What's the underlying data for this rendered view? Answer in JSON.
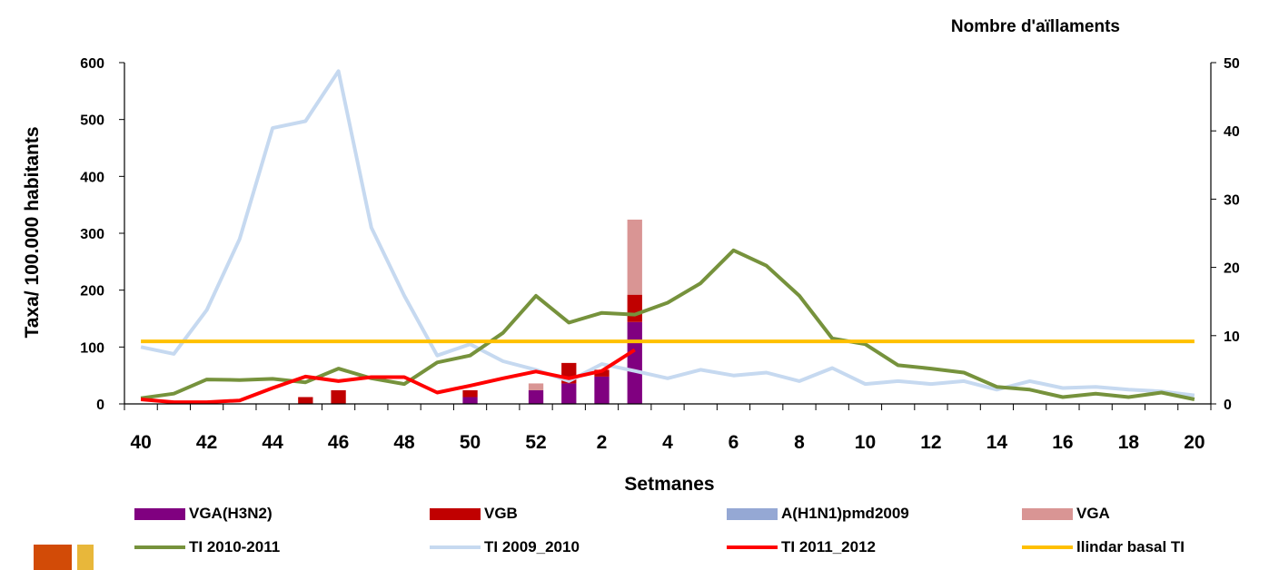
{
  "chart_data": {
    "type": "bar+line",
    "title": "",
    "xlabel": "Setmanes",
    "ylabel_left": "Taxa/ 100.000 habitants",
    "ylabel_right": "Nombre d'aïllaments",
    "ylim_left": [
      0,
      600
    ],
    "ylim_right": [
      0,
      50
    ],
    "y_ticks_left": [
      "0",
      "100",
      "200",
      "300",
      "400",
      "500",
      "600"
    ],
    "y_ticks_right": [
      "0",
      "10",
      "20",
      "30",
      "40",
      "50"
    ],
    "weeks": [
      40,
      41,
      42,
      43,
      44,
      45,
      46,
      47,
      48,
      49,
      50,
      51,
      52,
      1,
      2,
      3,
      4,
      5,
      6,
      7,
      8,
      9,
      10,
      11,
      12,
      13,
      14,
      15,
      16,
      17,
      18,
      19,
      20
    ],
    "x_tick_labels": [
      "40",
      "42",
      "44",
      "46",
      "48",
      "50",
      "52",
      "2",
      "4",
      "6",
      "8",
      "10",
      "12",
      "14",
      "16",
      "18",
      "20"
    ],
    "bar_series": [
      {
        "name": "VGA(H3N2)",
        "color": "#800080",
        "values": [
          0,
          0,
          0,
          0,
          0,
          0,
          0,
          0,
          0,
          0,
          1,
          0,
          2,
          3,
          4,
          12,
          0,
          0,
          0,
          0,
          0,
          0,
          0,
          0,
          0,
          0,
          0,
          0,
          0,
          0,
          0,
          0,
          0
        ]
      },
      {
        "name": "VGB",
        "color": "#c00000",
        "values": [
          0,
          0,
          0,
          0,
          0,
          1,
          2,
          0,
          0,
          0,
          1,
          0,
          0,
          3,
          1,
          4,
          0,
          0,
          0,
          0,
          0,
          0,
          0,
          0,
          0,
          0,
          0,
          0,
          0,
          0,
          0,
          0,
          0
        ]
      },
      {
        "name": "A(H1N1)pmd2009",
        "color": "#95a8d4",
        "values": [
          0,
          0,
          0,
          0,
          0,
          0,
          0,
          0,
          0,
          0,
          0,
          0,
          0,
          0,
          0,
          0,
          0,
          0,
          0,
          0,
          0,
          0,
          0,
          0,
          0,
          0,
          0,
          0,
          0,
          0,
          0,
          0,
          0
        ]
      },
      {
        "name": "VGA",
        "color": "#d99594",
        "values": [
          0,
          0,
          0,
          0,
          0,
          0,
          0,
          0,
          0,
          0,
          0,
          0,
          1,
          0,
          0,
          11,
          0,
          0,
          0,
          0,
          0,
          0,
          0,
          0,
          0,
          0,
          0,
          0,
          0,
          0,
          0,
          0,
          0
        ]
      }
    ],
    "line_series": [
      {
        "name": "TI 2010-2011",
        "color": "#76923c",
        "values": [
          10,
          18,
          43,
          42,
          44,
          38,
          62,
          45,
          35,
          73,
          85,
          125,
          190,
          143,
          160,
          157,
          178,
          212,
          270,
          243,
          190,
          115,
          105,
          68,
          62,
          55,
          30,
          25,
          12,
          18,
          12,
          20,
          8
        ]
      },
      {
        "name": "TI 2009_2010",
        "color": "#c6d9f0",
        "values": [
          100,
          88,
          165,
          290,
          485,
          497,
          585,
          310,
          190,
          85,
          105,
          75,
          60,
          40,
          70,
          58,
          45,
          60,
          50,
          55,
          40,
          63,
          35,
          40,
          35,
          40,
          25,
          40,
          28,
          30,
          25,
          22,
          15
        ]
      },
      {
        "name": "TI 2011_2012",
        "color": "#ff0000",
        "values": [
          8,
          3,
          3,
          6,
          28,
          48,
          40,
          47,
          47,
          20,
          32,
          45,
          57,
          45,
          58,
          95,
          null,
          null,
          null,
          null,
          null,
          null,
          null,
          null,
          null,
          null,
          null,
          null,
          null,
          null,
          null,
          null,
          null
        ]
      },
      {
        "name": "llindar basal TI",
        "color": "#ffc000",
        "values": [
          110,
          110,
          110,
          110,
          110,
          110,
          110,
          110,
          110,
          110,
          110,
          110,
          110,
          110,
          110,
          110,
          110,
          110,
          110,
          110,
          110,
          110,
          110,
          110,
          110,
          110,
          110,
          110,
          110,
          110,
          110,
          110,
          110
        ]
      }
    ],
    "legend": [
      "VGA(H3N2)",
      "VGB",
      "A(H1N1)pmd2009",
      "VGA",
      "TI 2010-2011",
      "TI 2009_2010",
      "TI 2011_2012",
      "llindar basal TI"
    ],
    "legend_position": "bottom"
  },
  "decor_colors": [
    "#d24b07",
    "#e8b73a"
  ]
}
